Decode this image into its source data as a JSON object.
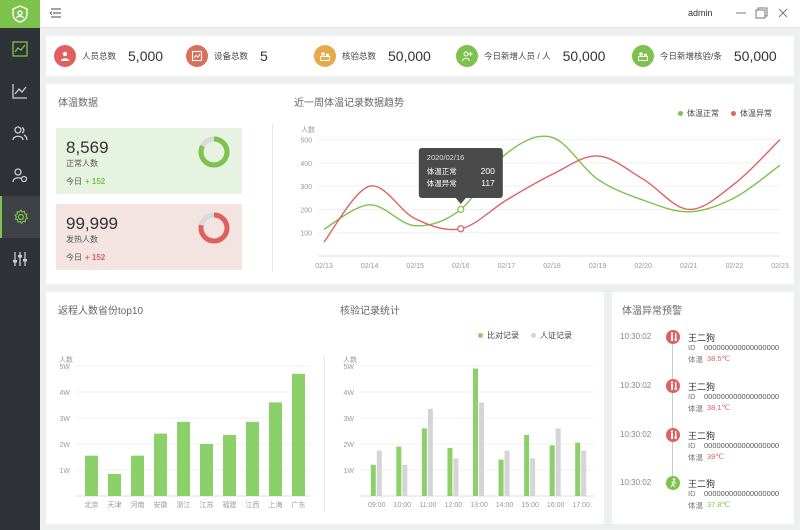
{
  "topbar": {
    "username": "admin"
  },
  "stats": [
    {
      "label": "人员总数",
      "value": "5,000",
      "color": "#e06060",
      "icon": "person-icon"
    },
    {
      "label": "设备总数",
      "value": "5",
      "color": "#d9705a",
      "icon": "device-chart-icon"
    },
    {
      "label": "核验总数",
      "value": "50,000",
      "color": "#e8a94a",
      "icon": "verify-icon"
    },
    {
      "label": "今日新增人员 / 人",
      "value": "50,000",
      "color": "#7cc24c",
      "icon": "add-person-icon"
    },
    {
      "label": "今日新增核验/条",
      "value": "50,000",
      "color": "#7cc24c",
      "icon": "add-verify-icon"
    }
  ],
  "temperature": {
    "title": "体温数据",
    "normal": {
      "value": "8,569",
      "label": "正常人数",
      "today_label": "今日",
      "today_value": "+ 152",
      "ratio": 0.82,
      "color": "#7cc24c"
    },
    "fever": {
      "value": "99,999",
      "label": "发热人数",
      "today_label": "今日",
      "today_value": "+ 152",
      "ratio": 0.78,
      "color": "#e06060"
    }
  },
  "trend": {
    "title": "近一周体温记录数据趋势",
    "tooltip": {
      "date": "2020/02/16",
      "rows": [
        {
          "label": "体温正常",
          "value": "200"
        },
        {
          "label": "体温异常",
          "value": "117"
        }
      ]
    }
  },
  "chart_data": [
    {
      "type": "line",
      "ylabel": "人数",
      "ylim": [
        0,
        550
      ],
      "yticks": [
        "100",
        "200",
        "300",
        "400",
        "500"
      ],
      "x": [
        "02/13",
        "02/14",
        "02/15",
        "02/16",
        "02/17",
        "02/18",
        "02/19",
        "02/20",
        "02/21",
        "02/22",
        "02/23"
      ],
      "series": [
        {
          "name": "体温正常",
          "color": "#7cc24c",
          "values": [
            115,
            220,
            130,
            200,
            440,
            510,
            330,
            240,
            190,
            250,
            390
          ]
        },
        {
          "name": "体温异常",
          "color": "#e06060",
          "values": [
            60,
            300,
            160,
            117,
            240,
            350,
            430,
            330,
            200,
            310,
            500
          ]
        }
      ]
    },
    {
      "type": "bar",
      "title": "返程人数省份top10",
      "ylabel": "人数",
      "ylim": [
        0,
        5
      ],
      "yticks": [
        "1W",
        "2W",
        "3W",
        "4W",
        "5W"
      ],
      "categories": [
        "北京",
        "天津",
        "河南",
        "安徽",
        "浙江",
        "江苏",
        "福建",
        "江西",
        "上海",
        "广东"
      ],
      "values": [
        1.55,
        0.85,
        1.55,
        2.4,
        2.85,
        2.0,
        2.35,
        2.85,
        3.6,
        4.7
      ],
      "color": "#8cd06a"
    },
    {
      "type": "bar",
      "title": "核验记录统计",
      "ylabel": "人数",
      "ylim": [
        0,
        5
      ],
      "yticks": [
        "1W",
        "2W",
        "3W",
        "4W",
        "5W"
      ],
      "categories": [
        "09:00",
        "10:00",
        "11:00",
        "12:00",
        "13:00",
        "14:00",
        "15:00",
        "16:00",
        "17:00"
      ],
      "series": [
        {
          "name": "比对记录",
          "color": "#8cd06a",
          "values": [
            1.2,
            1.9,
            2.6,
            1.85,
            4.9,
            1.4,
            2.35,
            1.95,
            2.05
          ]
        },
        {
          "name": "人证记录",
          "color": "#d5d5d5",
          "values": [
            1.75,
            1.2,
            3.35,
            1.45,
            3.6,
            1.75,
            1.45,
            2.6,
            1.75
          ]
        }
      ]
    }
  ],
  "alerts": {
    "title": "体温异常预警",
    "id_label": "ID",
    "temp_label": "体温",
    "items": [
      {
        "time": "10:30:02",
        "name": "王二狗",
        "id": "000000000000000000",
        "temp": "38.5℃",
        "color": "#e06060",
        "icon": "fever-person-icon"
      },
      {
        "time": "10:30:02",
        "name": "王二狗",
        "id": "000000000000000000",
        "temp": "38.1℃",
        "color": "#e06060",
        "icon": "fever-person-icon"
      },
      {
        "time": "10:30:02",
        "name": "王二狗",
        "id": "000000000000000000",
        "temp": "39℃",
        "color": "#e06060",
        "icon": "fever-person-icon"
      },
      {
        "time": "10:30:02",
        "name": "王二狗",
        "id": "000000000000000000",
        "temp": "37.8℃",
        "color": "#7cc24c",
        "icon": "walking-person-icon"
      }
    ]
  }
}
